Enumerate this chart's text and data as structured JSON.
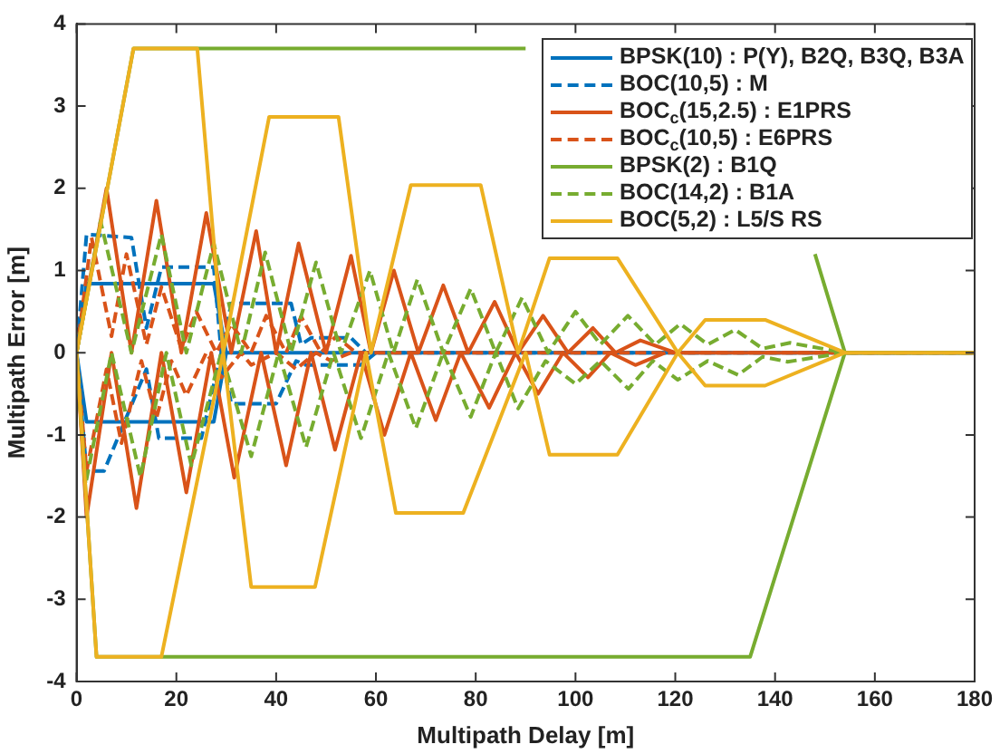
{
  "chart_data": {
    "type": "line",
    "xlabel": "Multipath Delay [m]",
    "ylabel": "Multipath Error [m]",
    "xlim": [
      0,
      180
    ],
    "xticks": [
      0,
      20,
      40,
      60,
      80,
      100,
      120,
      140,
      160,
      180
    ],
    "ylim": [
      -4,
      4
    ],
    "yticks": [
      -4,
      -3,
      -2,
      -1,
      0,
      1,
      2,
      3,
      4
    ],
    "grid": false,
    "legend": "top right",
    "marker": "none",
    "series": [
      {
        "name": "BPSK(10) : P(Y), B2Q, B3Q, B3A",
        "color": "#0072bd",
        "line_style": "solid",
        "x": [
          30,
          27.5,
          2,
          0,
          2,
          27.5,
          30,
          180
        ],
        "values": [
          0,
          -0.84,
          -0.84,
          0,
          0.84,
          0.84,
          0,
          0
        ]
      },
      {
        "name": "BOC(10,5) : M",
        "color": "#0072bd",
        "line_style": "dashed",
        "x": [
          60,
          57,
          46,
          44,
          40,
          31,
          29,
          25,
          16.5,
          14,
          5.5,
          2,
          0,
          2,
          11,
          14,
          17,
          27.5,
          29,
          31,
          43,
          45,
          47,
          55,
          58,
          180
        ],
        "values": [
          0,
          -0.15,
          -0.15,
          -0.1,
          -0.62,
          -0.62,
          0,
          -1.04,
          -1.04,
          -0.2,
          -1.44,
          -1.44,
          0,
          1.44,
          1.4,
          0.3,
          1.04,
          1.04,
          0,
          0.6,
          0.6,
          0.1,
          0.18,
          0.18,
          0,
          0
        ]
      },
      {
        "name": "BOC$_{c}$(15,2.5) : E1PRS",
        "color": "#d95319",
        "line_style": "solid",
        "x": [
          118,
          112,
          107,
          102.5,
          97.5,
          92.5,
          88,
          82.7,
          77,
          72,
          67,
          61.7,
          57,
          51.8,
          47,
          42,
          37,
          31.6,
          27,
          22,
          17,
          12,
          7,
          2,
          0,
          6,
          11,
          16,
          21,
          26,
          31,
          36,
          40,
          44.5,
          50,
          55,
          59,
          63.6,
          68.5,
          73.5,
          78.5,
          83.8,
          88.5,
          93.5,
          98.5,
          103.5,
          108,
          113,
          120,
          180
        ],
        "values": [
          0,
          -0.15,
          0,
          -0.3,
          0,
          -0.5,
          0,
          -0.67,
          0,
          -0.82,
          0,
          -1.0,
          0,
          -1.18,
          0,
          -1.37,
          0,
          -1.52,
          0,
          -1.7,
          0,
          -1.89,
          0,
          -2.0,
          0,
          2.0,
          0,
          1.85,
          0,
          1.7,
          0,
          1.48,
          0,
          1.33,
          0,
          1.18,
          0,
          1.0,
          0,
          0.82,
          0,
          0.62,
          0,
          0.45,
          0,
          0.3,
          0,
          0.15,
          0,
          0
        ]
      },
      {
        "name": "BOC$_{c}$(10,5) : E6PRS",
        "color": "#d95319",
        "line_style": "dashed",
        "x": [
          55,
          51,
          48,
          44,
          40,
          35,
          33,
          29,
          26,
          22,
          19,
          16,
          13,
          9,
          6,
          2,
          0,
          3,
          7,
          10,
          14,
          17,
          21,
          24,
          28,
          31,
          35,
          38,
          42,
          45,
          49,
          52,
          56,
          180
        ],
        "values": [
          0,
          -0.1,
          0,
          -0.2,
          0,
          -0.15,
          0,
          -0.3,
          0,
          -0.52,
          -0.1,
          -0.8,
          -0.1,
          -1.1,
          -0.2,
          -1.44,
          0,
          1.4,
          0.2,
          1.2,
          0.1,
          0.8,
          0.05,
          0.5,
          0,
          0.35,
          0,
          0.45,
          0,
          0.44,
          0,
          0.2,
          0,
          0
        ]
      },
      {
        "name": "BPSK(2) : B1Q",
        "color": "#77ac30",
        "line_style": "solid",
        "x": [
          154,
          135,
          4,
          0,
          11.4,
          90,
          135,
          148,
          154,
          180
        ],
        "values": [
          0,
          -3.7,
          -3.7,
          0,
          3.7,
          3.7,
          null,
          1.2,
          0,
          0
        ]
      },
      {
        "name": "BOC(14,2) : B1A",
        "color": "#77ac30",
        "line_style": "dashed",
        "x": [
          154,
          142.5,
          137.5,
          132.6,
          126.5,
          120.5,
          115.5,
          110.6,
          105,
          100,
          94,
          88.5,
          84,
          79,
          73.5,
          68,
          62.5,
          57,
          51.5,
          46,
          40.5,
          35,
          29,
          23,
          18,
          12.8,
          7,
          1.8,
          0,
          4.8,
          11,
          17,
          22,
          27.5,
          33,
          37.8,
          43,
          48,
          53,
          58.8,
          63.5,
          68.3,
          73.5,
          79,
          84,
          89.3,
          94.5,
          100,
          105,
          110.5,
          116,
          121,
          126.5,
          132,
          137.5,
          143,
          154,
          180
        ],
        "values": [
          0,
          -0.11,
          -0.05,
          -0.27,
          -0.1,
          -0.33,
          -0.1,
          -0.44,
          -0.1,
          -0.38,
          -0.1,
          -0.68,
          0,
          -0.78,
          0,
          -0.92,
          0,
          -1.04,
          0,
          -1.15,
          0,
          -1.26,
          0,
          -1.37,
          0,
          -1.51,
          0,
          -1.6,
          0,
          1.6,
          0,
          1.44,
          0,
          1.33,
          0,
          1.22,
          0,
          1.1,
          0,
          1.0,
          0,
          0.89,
          0,
          0.78,
          0,
          0.67,
          0,
          0.5,
          0.1,
          0.45,
          0.1,
          0.35,
          0.1,
          0.28,
          0.05,
          0.12,
          0,
          0
        ]
      },
      {
        "name": "BOC(5,2) : L5/S RS",
        "color": "#edb120",
        "line_style": "solid",
        "x": [
          154,
          138,
          126,
          120.5,
          108.4,
          94.8,
          90,
          77.5,
          64,
          58,
          47.8,
          35,
          29.4,
          17,
          4,
          0,
          11.4,
          24.2,
          29.4,
          38.6,
          52.5,
          59,
          67,
          81,
          88.5,
          94.8,
          108.4,
          120.5,
          126,
          138,
          154,
          180
        ],
        "values": [
          0,
          -0.4,
          -0.4,
          0,
          -1.24,
          -1.24,
          0,
          -1.95,
          -1.95,
          0,
          -2.85,
          -2.85,
          0,
          -3.7,
          -3.7,
          0,
          3.7,
          3.7,
          0,
          2.87,
          2.87,
          0,
          2.04,
          2.04,
          0,
          1.15,
          1.15,
          0,
          0.4,
          0.4,
          0,
          0
        ]
      }
    ]
  }
}
